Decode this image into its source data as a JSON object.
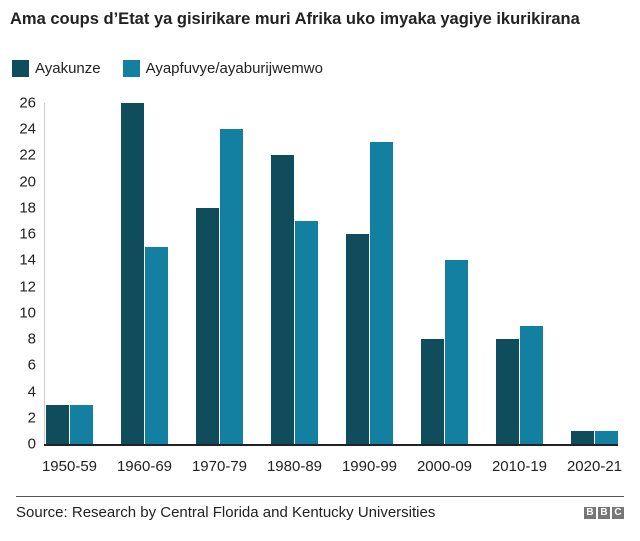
{
  "title": "Ama coups d’Etat ya gisirikare muri Afrika uko imyaka yagiye ikurikirana",
  "legend": [
    {
      "label": "Ayakunze",
      "color": "#0f4c5c"
    },
    {
      "label": "Ayapfuvye/ayaburijwemwo",
      "color": "#1380a1"
    }
  ],
  "source": "Source: Research by Central Florida and Kentucky Universities",
  "logo": [
    "B",
    "B",
    "C"
  ],
  "chart_data": {
    "type": "bar",
    "title": "Ama coups d’Etat ya gisirikare muri Afrika uko imyaka yagiye ikurikirana",
    "xlabel": "",
    "ylabel": "",
    "categories": [
      "1950-59",
      "1960-69",
      "1970-79",
      "1980-89",
      "1990-99",
      "2000-09",
      "2010-19",
      "2020-21"
    ],
    "series": [
      {
        "name": "Ayakunze",
        "color": "#0f4c5c",
        "values": [
          3,
          26,
          18,
          22,
          16,
          8,
          8,
          1
        ]
      },
      {
        "name": "Ayapfuvye/ayaburijwemwo",
        "color": "#1380a1",
        "values": [
          3,
          15,
          24,
          17,
          23,
          14,
          9,
          1
        ]
      }
    ],
    "ylim": [
      0,
      26
    ],
    "yticks": [
      0,
      2,
      4,
      6,
      8,
      10,
      12,
      14,
      16,
      18,
      20,
      22,
      24,
      26
    ],
    "grid": false,
    "legend_position": "top-left"
  }
}
